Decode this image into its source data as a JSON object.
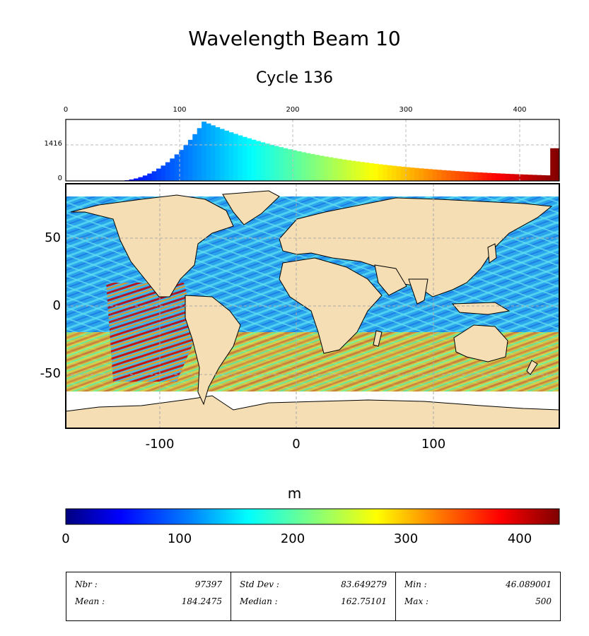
{
  "title": "Wavelength Beam 10",
  "subtitle": "Cycle 136",
  "histogram": {
    "x_ticks": [
      "0",
      "100",
      "200",
      "300",
      "400"
    ],
    "y_ticks": [
      "1416",
      "0"
    ]
  },
  "map": {
    "x_ticks": [
      "-100",
      "0",
      "100"
    ],
    "y_ticks": [
      "50",
      "0",
      "-50"
    ]
  },
  "colorbar": {
    "unit": "m",
    "ticks": [
      "0",
      "100",
      "200",
      "300",
      "400"
    ]
  },
  "stats": [
    [
      {
        "label": "Nbr :",
        "value": "97397"
      },
      {
        "label": "Mean :",
        "value": "184.2475"
      }
    ],
    [
      {
        "label": "Std Dev :",
        "value": "83.649279"
      },
      {
        "label": "Median :",
        "value": "162.75101"
      }
    ],
    [
      {
        "label": "Min :",
        "value": "46.089001"
      },
      {
        "label": "Max :",
        "value": "500"
      }
    ]
  ],
  "colors": {
    "land": "#f5deb3",
    "ocean_base": "#2aa5ec",
    "jet": [
      "#00007f",
      "#0000ff",
      "#007fff",
      "#00ffff",
      "#7fff7f",
      "#ffff00",
      "#ff7f00",
      "#ff0000",
      "#7f0000"
    ]
  }
}
